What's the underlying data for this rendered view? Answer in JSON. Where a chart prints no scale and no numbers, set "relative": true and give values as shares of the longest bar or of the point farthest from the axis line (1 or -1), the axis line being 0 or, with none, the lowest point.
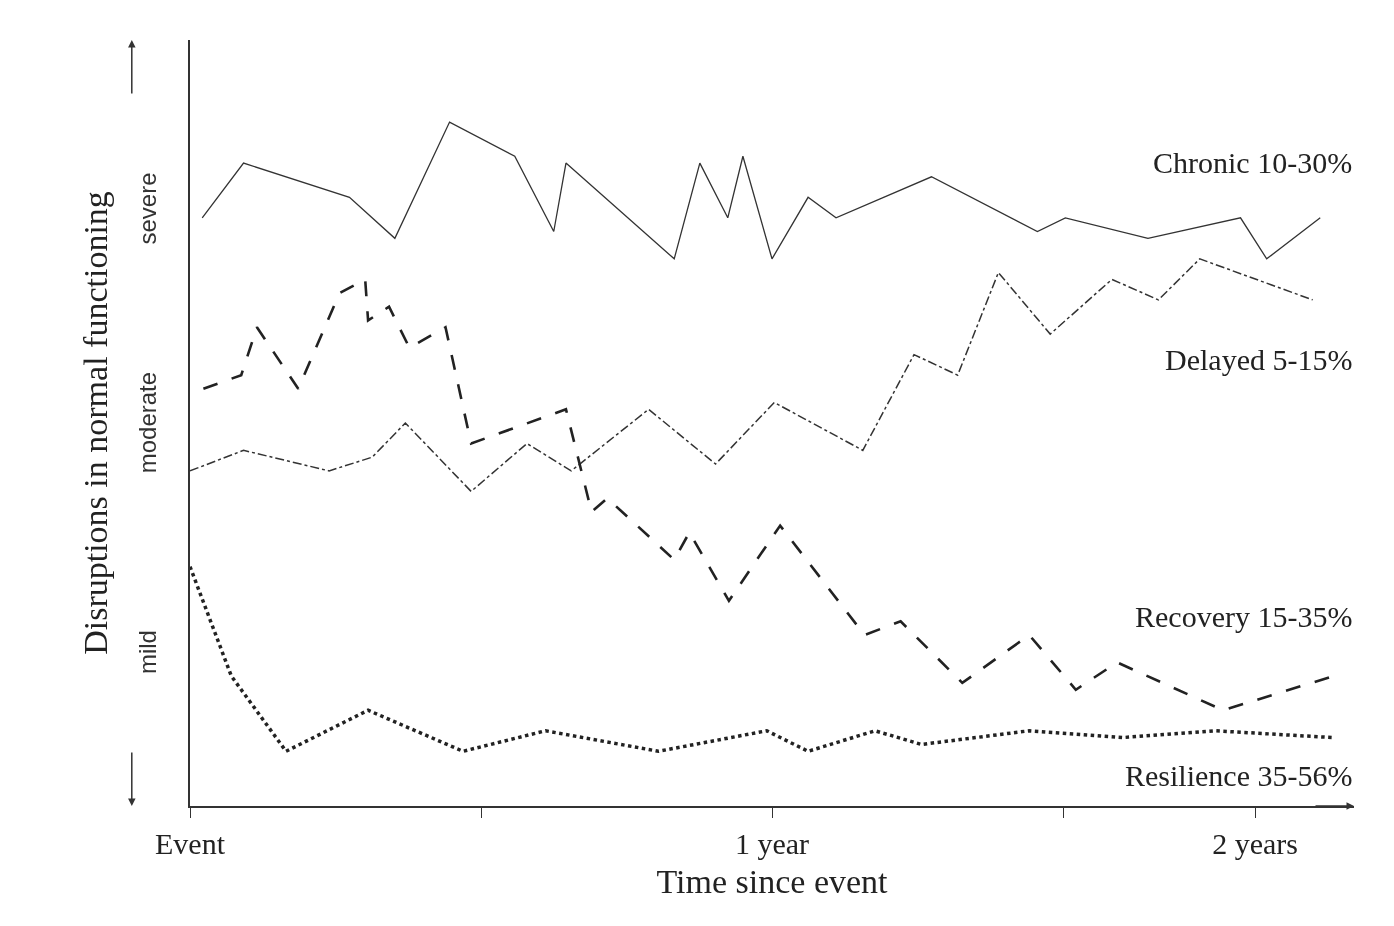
{
  "chart_data": {
    "type": "line",
    "xlabel": "Time since event",
    "ylabel": "Disruptions in normal functioning",
    "relative": true,
    "legend": false,
    "marker": "none",
    "xlim": [
      0,
      2.0
    ],
    "xticks": [
      {
        "value": 0,
        "label": "Event"
      },
      {
        "value": 0.5,
        "label": null
      },
      {
        "value": 1,
        "label": "1 year"
      },
      {
        "value": 1.5,
        "label": null
      },
      {
        "value": 1.83,
        "label": "2 years"
      }
    ],
    "annotations": [
      "severe",
      "moderate",
      "mild"
    ],
    "series": [
      {
        "name": "Chronic 10-30%",
        "color": "#333333",
        "line_style": "solid",
        "x": [
          0.021,
          0.092,
          0.274,
          0.352,
          0.446,
          0.558,
          0.625,
          0.646,
          0.832,
          0.876,
          0.924,
          0.95,
          1.0,
          1.062,
          1.11,
          1.274,
          1.456,
          1.504,
          1.646,
          1.805,
          1.85,
          1.942
        ],
        "values": [
          0.86,
          0.94,
          0.89,
          0.83,
          1.0,
          0.95,
          0.84,
          0.94,
          0.8,
          0.94,
          0.86,
          0.95,
          0.8,
          0.89,
          0.86,
          0.92,
          0.84,
          0.86,
          0.83,
          0.86,
          0.8,
          0.86
        ]
      },
      {
        "name": "Delayed 5-15%",
        "color": "#333333",
        "line_style": "dashdot",
        "x": [
          0,
          0.092,
          0.239,
          0.313,
          0.37,
          0.483,
          0.579,
          0.655,
          0.788,
          0.903,
          1.004,
          1.156,
          1.244,
          1.319,
          1.389,
          1.478,
          1.584,
          1.664,
          1.735,
          1.929
        ],
        "values": [
          0.49,
          0.52,
          0.49,
          0.51,
          0.56,
          0.46,
          0.53,
          0.49,
          0.58,
          0.5,
          0.59,
          0.52,
          0.66,
          0.63,
          0.78,
          0.69,
          0.77,
          0.74,
          0.8,
          0.74
        ]
      },
      {
        "name": "Recovery 15-35%",
        "color": "#222222",
        "line_style": "dashed",
        "x": [
          0.023,
          0.088,
          0.115,
          0.186,
          0.257,
          0.301,
          0.306,
          0.342,
          0.377,
          0.439,
          0.483,
          0.646,
          0.69,
          0.717,
          0.832,
          0.858,
          0.926,
          1.014,
          1.159,
          1.221,
          1.327,
          1.442,
          1.522,
          1.593,
          1.775,
          1.965
        ],
        "values": [
          0.61,
          0.63,
          0.7,
          0.61,
          0.75,
          0.77,
          0.71,
          0.73,
          0.67,
          0.7,
          0.53,
          0.58,
          0.43,
          0.45,
          0.36,
          0.4,
          0.3,
          0.41,
          0.25,
          0.27,
          0.18,
          0.25,
          0.17,
          0.21,
          0.14,
          0.19
        ]
      },
      {
        "name": "Resilience 35-56%",
        "color": "#222222",
        "line_style": "dotted",
        "x": [
          0,
          0.071,
          0.165,
          0.306,
          0.469,
          0.611,
          0.805,
          0.991,
          1.062,
          1.177,
          1.257,
          1.442,
          1.602,
          1.761,
          1.965
        ],
        "values": [
          0.35,
          0.19,
          0.08,
          0.14,
          0.08,
          0.11,
          0.08,
          0.11,
          0.08,
          0.11,
          0.09,
          0.11,
          0.1,
          0.11,
          0.1
        ]
      }
    ]
  }
}
